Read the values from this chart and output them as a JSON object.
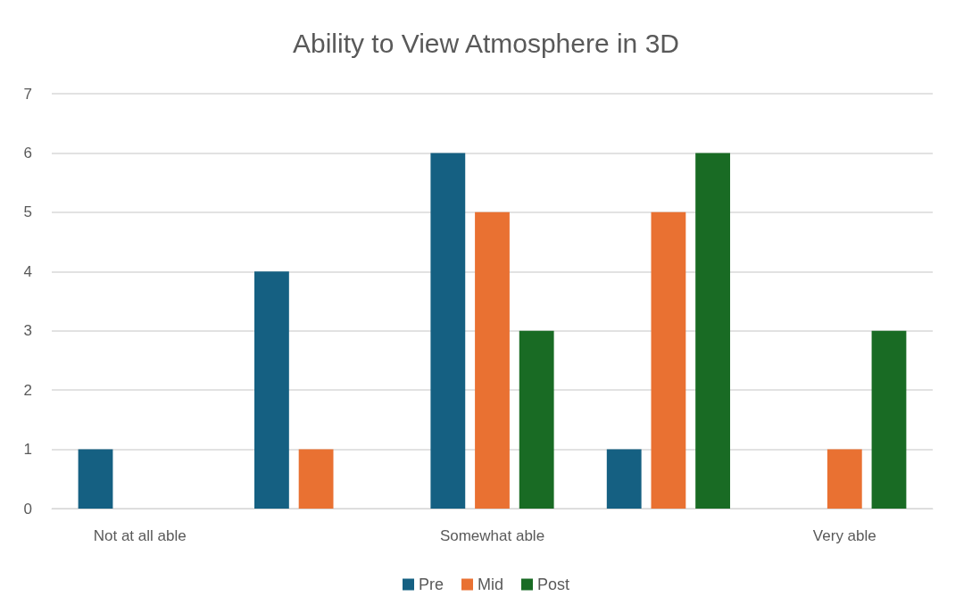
{
  "chart_data": {
    "type": "bar",
    "title": "Ability to View Atmosphere in 3D",
    "categories": [
      "Not at all able",
      null,
      "Somewhat able",
      null,
      "Very able"
    ],
    "series": [
      {
        "name": "Pre",
        "color": "#156082",
        "values": [
          1,
          4,
          6,
          1,
          0
        ]
      },
      {
        "name": "Mid",
        "color": "#e97132",
        "values": [
          0,
          1,
          5,
          5,
          1
        ]
      },
      {
        "name": "Post",
        "color": "#196b24",
        "values": [
          0,
          0,
          3,
          6,
          3
        ]
      }
    ],
    "ylim": [
      0,
      7
    ],
    "yticks": [
      0,
      1,
      2,
      3,
      4,
      5,
      6,
      7
    ],
    "grid": "y",
    "legend": "bottom"
  }
}
